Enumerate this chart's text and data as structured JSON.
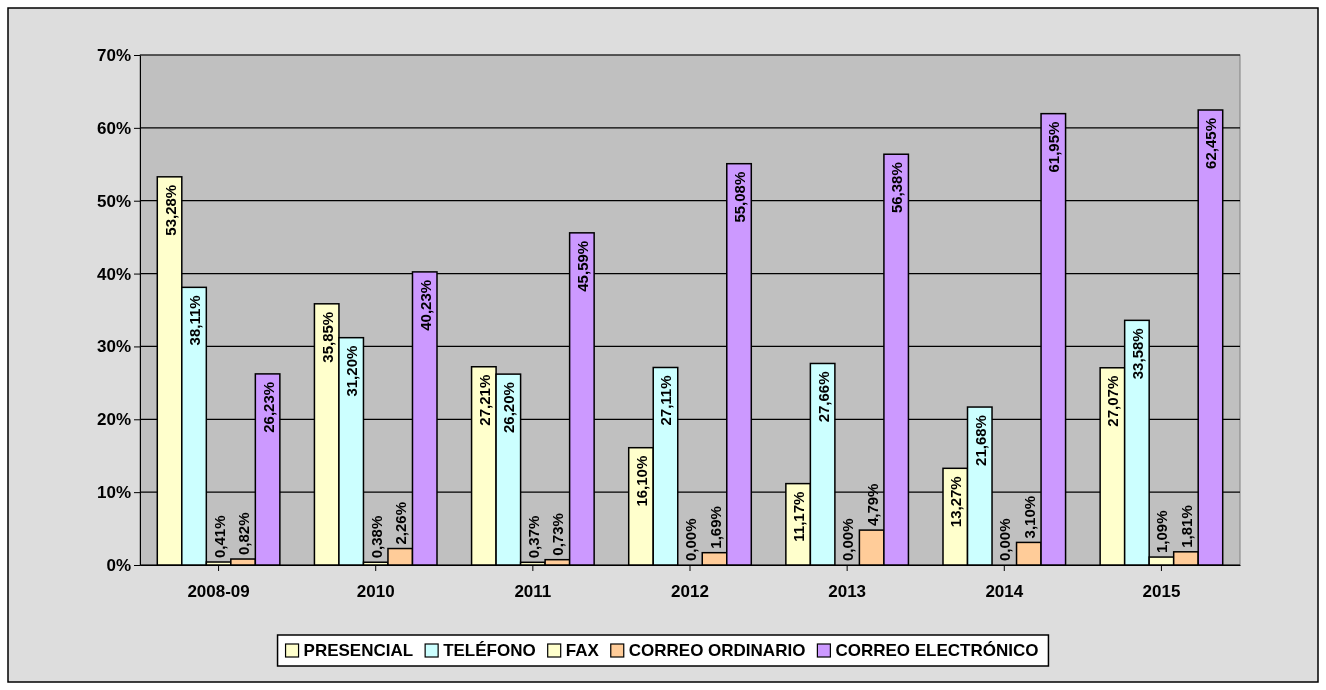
{
  "chart_data": {
    "type": "bar",
    "categories": [
      "2008-09",
      "2010",
      "2011",
      "2012",
      "2013",
      "2014",
      "2015"
    ],
    "ylim": [
      0,
      70
    ],
    "yticks": [
      {
        "value": 0,
        "label": "0%"
      },
      {
        "value": 10,
        "label": "10%"
      },
      {
        "value": 20,
        "label": "20%"
      },
      {
        "value": 30,
        "label": "30%"
      },
      {
        "value": 40,
        "label": "40%"
      },
      {
        "value": 50,
        "label": "50%"
      },
      {
        "value": 60,
        "label": "60%"
      },
      {
        "value": 70,
        "label": "70%"
      }
    ],
    "grid": "y",
    "legend": "bottom",
    "series": [
      {
        "name": "PRESENCIAL",
        "color": "#ffffcc",
        "values": [
          53.28,
          35.85,
          27.21,
          16.1,
          11.17,
          13.27,
          27.07
        ],
        "value_labels": [
          "53,28%",
          "35,85%",
          "27,21%",
          "16,10%",
          "11,17%",
          "13,27%",
          "27,07%"
        ]
      },
      {
        "name": "TELÉFONO",
        "color": "#ccffff",
        "values": [
          38.11,
          31.2,
          26.2,
          27.11,
          27.66,
          21.68,
          33.58
        ],
        "value_labels": [
          "38,11%",
          "31,20%",
          "26,20%",
          "27,11%",
          "27,66%",
          "21,68%",
          "33,58%"
        ]
      },
      {
        "name": "FAX",
        "color": "#ffffcc",
        "values": [
          0.41,
          0.38,
          0.37,
          0.0,
          0.0,
          0.0,
          1.09
        ],
        "value_labels": [
          "0,41%",
          "0,38%",
          "0,37%",
          "0,00%",
          "0,00%",
          "0,00%",
          "1,09%"
        ]
      },
      {
        "name": "CORREO ORDINARIO",
        "color": "#ffcc99",
        "values": [
          0.82,
          2.26,
          0.73,
          1.69,
          4.79,
          3.1,
          1.81
        ],
        "value_labels": [
          "0,82%",
          "2,26%",
          "0,73%",
          "1,69%",
          "4,79%",
          "3,10%",
          "1,81%"
        ]
      },
      {
        "name": "CORREO ELECTRÓNICO",
        "color": "#cc99ff",
        "values": [
          26.23,
          40.23,
          45.59,
          55.08,
          56.38,
          61.95,
          62.45
        ],
        "value_labels": [
          "26,23%",
          "40,23%",
          "45,59%",
          "55,08%",
          "56,38%",
          "61,95%",
          "62,45%"
        ]
      }
    ]
  }
}
